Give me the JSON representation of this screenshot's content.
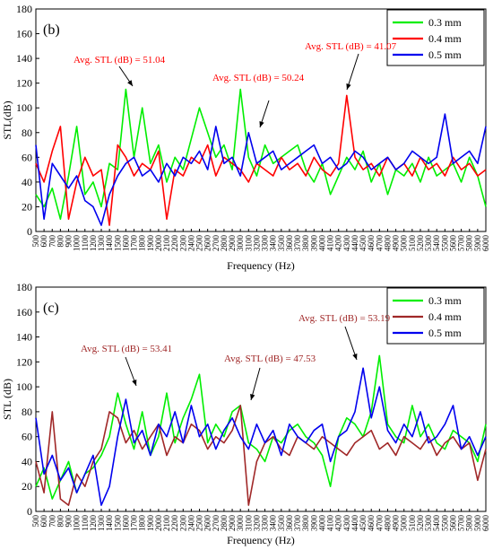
{
  "chart_data": [
    {
      "type": "line",
      "panel_label": "(b)",
      "xlabel": "Frequency (Hz)",
      "ylabel": "STL(dB)",
      "xlim": [
        500,
        6000
      ],
      "ylim": [
        0,
        180
      ],
      "y_ticks": [
        0,
        20,
        40,
        60,
        80,
        100,
        120,
        140,
        160,
        180
      ],
      "x_ticks": [
        500,
        600,
        700,
        800,
        900,
        1000,
        1100,
        1200,
        1300,
        1400,
        1500,
        1600,
        1700,
        1800,
        1900,
        2000,
        2100,
        2200,
        2300,
        2400,
        2500,
        2600,
        2700,
        2800,
        2900,
        3000,
        3100,
        3200,
        3300,
        3400,
        3500,
        3600,
        3700,
        3800,
        3900,
        4000,
        4100,
        4200,
        4300,
        4400,
        4500,
        4600,
        4700,
        4800,
        4900,
        5000,
        5100,
        5200,
        5300,
        5400,
        5500,
        5600,
        5700,
        5800,
        5900,
        6000
      ],
      "grid": false,
      "legend_position": "top-right",
      "series": [
        {
          "name": "0.3 mm",
          "color": "#00ee00",
          "x": [
            500,
            600,
            700,
            800,
            900,
            1000,
            1100,
            1200,
            1300,
            1400,
            1500,
            1600,
            1700,
            1800,
            1900,
            2000,
            2100,
            2200,
            2300,
            2400,
            2500,
            2600,
            2700,
            2800,
            2900,
            3000,
            3100,
            3200,
            3300,
            3400,
            3500,
            3600,
            3700,
            3800,
            3900,
            4000,
            4100,
            4200,
            4300,
            4400,
            4500,
            4600,
            4700,
            4800,
            4900,
            5000,
            5100,
            5200,
            5300,
            5400,
            5500,
            5600,
            5700,
            5800,
            5900,
            6000
          ],
          "values": [
            30,
            20,
            35,
            10,
            45,
            85,
            30,
            40,
            20,
            55,
            50,
            115,
            60,
            100,
            55,
            70,
            40,
            60,
            50,
            75,
            100,
            80,
            60,
            70,
            50,
            115,
            60,
            45,
            70,
            55,
            60,
            65,
            70,
            50,
            40,
            55,
            30,
            45,
            60,
            50,
            65,
            40,
            55,
            30,
            50,
            45,
            55,
            40,
            60,
            45,
            50,
            55,
            40,
            60,
            45,
            20
          ]
        },
        {
          "name": "0.4 mm",
          "color": "#ff0000",
          "x": [
            500,
            600,
            700,
            800,
            900,
            1000,
            1100,
            1200,
            1300,
            1400,
            1500,
            1600,
            1700,
            1800,
            1900,
            2000,
            2100,
            2200,
            2300,
            2400,
            2500,
            2600,
            2700,
            2800,
            2900,
            3000,
            3100,
            3200,
            3300,
            3400,
            3500,
            3600,
            3700,
            3800,
            3900,
            4000,
            4100,
            4200,
            4300,
            4400,
            4500,
            4600,
            4700,
            4800,
            4900,
            5000,
            5100,
            5200,
            5300,
            5400,
            5500,
            5600,
            5700,
            5800,
            5900,
            6000
          ],
          "values": [
            55,
            40,
            65,
            85,
            10,
            40,
            60,
            45,
            50,
            5,
            70,
            60,
            45,
            55,
            50,
            65,
            10,
            50,
            45,
            60,
            55,
            70,
            45,
            60,
            55,
            50,
            40,
            55,
            50,
            45,
            60,
            50,
            55,
            45,
            60,
            50,
            45,
            55,
            110,
            60,
            50,
            55,
            45,
            60,
            50,
            55,
            45,
            60,
            50,
            55,
            45,
            60,
            50,
            55,
            45,
            50
          ]
        },
        {
          "name": "0.5 mm",
          "color": "#0000ee",
          "x": [
            500,
            600,
            700,
            800,
            900,
            1000,
            1100,
            1200,
            1300,
            1400,
            1500,
            1600,
            1700,
            1800,
            1900,
            2000,
            2100,
            2200,
            2300,
            2400,
            2500,
            2600,
            2700,
            2800,
            2900,
            3000,
            3100,
            3200,
            3300,
            3400,
            3500,
            3600,
            3700,
            3800,
            3900,
            4000,
            4100,
            4200,
            4300,
            4400,
            4500,
            4600,
            4700,
            4800,
            4900,
            5000,
            5100,
            5200,
            5300,
            5400,
            5500,
            5600,
            5700,
            5800,
            5900,
            6000
          ],
          "values": [
            70,
            10,
            55,
            45,
            35,
            45,
            25,
            20,
            5,
            30,
            45,
            55,
            60,
            45,
            50,
            40,
            55,
            45,
            60,
            55,
            65,
            50,
            85,
            55,
            60,
            45,
            80,
            55,
            60,
            65,
            50,
            55,
            60,
            65,
            70,
            55,
            60,
            50,
            55,
            65,
            60,
            50,
            55,
            60,
            50,
            55,
            65,
            60,
            55,
            60,
            95,
            55,
            60,
            65,
            55,
            85
          ]
        }
      ],
      "annotations": [
        {
          "text": "Avg. STL (dB) = 51.04",
          "color": "#ff0000",
          "target_x": 1600,
          "target_y": 112
        },
        {
          "text": "Avg. STL (dB) = 50.24",
          "color": "#ff0000",
          "target_x": 3200,
          "target_y": 80
        },
        {
          "text": "Avg. STL (dB) = 41.07",
          "color": "#ff0000",
          "target_x": 4200,
          "target_y": 110
        }
      ]
    },
    {
      "type": "line",
      "panel_label": "(c)",
      "xlabel": "Frequency (Hz)",
      "ylabel": "STL (dB)",
      "xlim": [
        500,
        6000
      ],
      "ylim": [
        0,
        180
      ],
      "y_ticks": [
        0,
        20,
        40,
        60,
        80,
        100,
        120,
        140,
        160,
        180
      ],
      "x_ticks": [
        500,
        600,
        700,
        800,
        900,
        1000,
        1100,
        1200,
        1300,
        1400,
        1500,
        1600,
        1700,
        1800,
        1900,
        2000,
        2100,
        2200,
        2300,
        2400,
        2500,
        2600,
        2700,
        2800,
        2900,
        3000,
        3100,
        3200,
        3300,
        3400,
        3500,
        3600,
        3700,
        3800,
        3900,
        4000,
        4100,
        4200,
        4300,
        4400,
        4500,
        4600,
        4700,
        4800,
        4900,
        5000,
        5100,
        5200,
        5300,
        5400,
        5500,
        5600,
        5700,
        5800,
        5900,
        6000
      ],
      "grid": false,
      "legend_position": "top-right",
      "series": [
        {
          "name": "0.3 mm",
          "color": "#00ee00",
          "x": [
            500,
            600,
            700,
            800,
            900,
            1000,
            1100,
            1200,
            1300,
            1400,
            1500,
            1600,
            1700,
            1800,
            1900,
            2000,
            2100,
            2200,
            2300,
            2400,
            2500,
            2600,
            2700,
            2800,
            2900,
            3000,
            3100,
            3200,
            3300,
            3400,
            3500,
            3600,
            3700,
            3800,
            3900,
            4000,
            4100,
            4200,
            4300,
            4400,
            4500,
            4600,
            4700,
            4800,
            4900,
            5000,
            5100,
            5200,
            5300,
            5400,
            5500,
            5600,
            5700,
            5800,
            5900,
            6000
          ],
          "values": [
            20,
            35,
            10,
            25,
            40,
            15,
            30,
            35,
            45,
            60,
            95,
            70,
            50,
            80,
            45,
            60,
            95,
            55,
            75,
            90,
            110,
            55,
            70,
            60,
            80,
            85,
            55,
            50,
            40,
            60,
            55,
            65,
            70,
            60,
            55,
            45,
            20,
            60,
            75,
            70,
            60,
            80,
            125,
            70,
            60,
            55,
            85,
            60,
            70,
            55,
            50,
            65,
            60,
            55,
            40,
            70
          ]
        },
        {
          "name": "0.4 mm",
          "color": "#a02828",
          "x": [
            500,
            600,
            700,
            800,
            900,
            1000,
            1100,
            1200,
            1300,
            1400,
            1500,
            1600,
            1700,
            1800,
            1900,
            2000,
            2100,
            2200,
            2300,
            2400,
            2500,
            2600,
            2700,
            2800,
            2900,
            3000,
            3100,
            3200,
            3300,
            3400,
            3500,
            3600,
            3700,
            3800,
            3900,
            4000,
            4100,
            4200,
            4300,
            4400,
            4500,
            4600,
            4700,
            4800,
            4900,
            5000,
            5100,
            5200,
            5300,
            5400,
            5500,
            5600,
            5700,
            5800,
            5900,
            6000
          ],
          "values": [
            40,
            15,
            80,
            10,
            5,
            30,
            20,
            40,
            50,
            80,
            75,
            55,
            65,
            50,
            60,
            70,
            45,
            60,
            55,
            70,
            65,
            50,
            60,
            55,
            65,
            85,
            5,
            40,
            55,
            60,
            50,
            45,
            60,
            55,
            50,
            60,
            55,
            50,
            45,
            55,
            60,
            65,
            50,
            55,
            45,
            60,
            55,
            50,
            60,
            45,
            55,
            60,
            50,
            55,
            25,
            50
          ]
        },
        {
          "name": "0.5 mm",
          "color": "#0000ee",
          "x": [
            500,
            600,
            700,
            800,
            900,
            1000,
            1100,
            1200,
            1300,
            1400,
            1500,
            1600,
            1700,
            1800,
            1900,
            2000,
            2100,
            2200,
            2300,
            2400,
            2500,
            2600,
            2700,
            2800,
            2900,
            3000,
            3100,
            3200,
            3300,
            3400,
            3500,
            3600,
            3700,
            3800,
            3900,
            4000,
            4100,
            4200,
            4300,
            4400,
            4500,
            4600,
            4700,
            4800,
            4900,
            5000,
            5100,
            5200,
            5300,
            5400,
            5500,
            5600,
            5700,
            5800,
            5900,
            6000
          ],
          "values": [
            75,
            30,
            45,
            25,
            35,
            15,
            30,
            45,
            5,
            20,
            60,
            90,
            55,
            65,
            45,
            70,
            60,
            80,
            55,
            85,
            60,
            70,
            50,
            65,
            75,
            60,
            50,
            70,
            55,
            65,
            45,
            70,
            60,
            55,
            65,
            70,
            40,
            60,
            65,
            80,
            115,
            75,
            100,
            65,
            55,
            70,
            60,
            80,
            55,
            60,
            70,
            85,
            50,
            60,
            45,
            60
          ]
        }
      ],
      "annotations": [
        {
          "text": "Avg. STL (dB) = 53.41",
          "color": "#a02828",
          "target_x": 1600,
          "target_y": 95
        },
        {
          "text": "Avg. STL (dB) = 47.53",
          "color": "#a02828",
          "target_x": 3050,
          "target_y": 82
        },
        {
          "text": "Avg. STL (dB) = 53.19",
          "color": "#a02828",
          "target_x": 4500,
          "target_y": 112
        }
      ]
    }
  ]
}
